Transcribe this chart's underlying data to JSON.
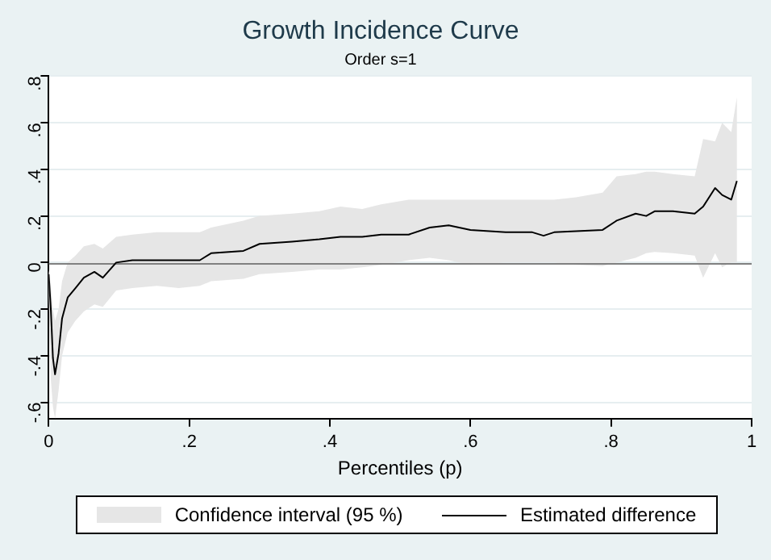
{
  "chart_data": {
    "type": "line",
    "title": "Growth Incidence Curve",
    "subtitle": "Order s=1",
    "xlabel": "Percentiles (p)",
    "x": [
      0,
      0.003,
      0.006,
      0.009,
      0.014,
      0.019,
      0.027,
      0.038,
      0.05,
      0.065,
      0.077,
      0.096,
      0.119,
      0.154,
      0.185,
      0.215,
      0.231,
      0.277,
      0.3,
      0.346,
      0.385,
      0.415,
      0.446,
      0.473,
      0.512,
      0.542,
      0.569,
      0.6,
      0.65,
      0.688,
      0.704,
      0.719,
      0.75,
      0.788,
      0.808,
      0.835,
      0.85,
      0.862,
      0.888,
      0.919,
      0.931,
      0.948,
      0.958,
      0.971,
      0.979
    ],
    "series": [
      {
        "name": "Estimated difference",
        "type": "line",
        "color": "#000000",
        "lower": [
          -0.15,
          -0.5,
          -0.62,
          -0.67,
          -0.55,
          -0.4,
          -0.3,
          -0.25,
          -0.21,
          -0.18,
          -0.19,
          -0.12,
          -0.11,
          -0.1,
          -0.11,
          -0.1,
          -0.08,
          -0.07,
          -0.05,
          -0.04,
          -0.03,
          -0.03,
          -0.02,
          -0.01,
          0.01,
          0.02,
          0.01,
          -0.01,
          0,
          0,
          0,
          0,
          -0.01,
          -0.015,
          0,
          0.02,
          0.04,
          0.045,
          0.04,
          0.03,
          -0.065,
          0.04,
          -0.02,
          0,
          0
        ],
        "upper": [
          -0.03,
          -0.1,
          -0.2,
          -0.25,
          -0.2,
          -0.08,
          0,
          0.03,
          0.07,
          0.08,
          0.06,
          0.11,
          0.12,
          0.13,
          0.13,
          0.13,
          0.15,
          0.18,
          0.2,
          0.21,
          0.22,
          0.24,
          0.23,
          0.25,
          0.27,
          0.27,
          0.27,
          0.27,
          0.27,
          0.27,
          0.27,
          0.27,
          0.28,
          0.3,
          0.37,
          0.38,
          0.39,
          0.39,
          0.38,
          0.37,
          0.53,
          0.52,
          0.6,
          0.56,
          0.71
        ],
        "values": [
          -0.05,
          -0.2,
          -0.41,
          -0.48,
          -0.39,
          -0.24,
          -0.15,
          -0.11,
          -0.065,
          -0.04,
          -0.065,
          0,
          0.01,
          0.01,
          0.01,
          0.01,
          0.04,
          0.05,
          0.08,
          0.09,
          0.1,
          0.11,
          0.11,
          0.12,
          0.12,
          0.15,
          0.16,
          0.14,
          0.13,
          0.13,
          0.115,
          0.13,
          0.135,
          0.14,
          0.18,
          0.21,
          0.2,
          0.22,
          0.22,
          0.21,
          0.24,
          0.32,
          0.29,
          0.27,
          0.35
        ]
      }
    ],
    "annotations": [
      "Confidence interval (95 %)"
    ],
    "xlim": [
      0,
      1
    ],
    "xticks": [
      0,
      {
        "value": 0.2,
        "label": ".2"
      },
      {
        "value": 0.4,
        "label": ".4"
      },
      {
        "value": 0.6,
        "label": ".6"
      },
      {
        "value": 0.8,
        "label": ".8"
      },
      1
    ],
    "ylim": [
      -0.67,
      0.8
    ],
    "yticks": [
      {
        "value": -0.6,
        "label": "-.6"
      },
      {
        "value": -0.4,
        "label": "-.4"
      },
      {
        "value": -0.2,
        "label": "-.2"
      },
      0,
      {
        "value": 0.2,
        "label": ".2"
      },
      {
        "value": 0.4,
        "label": ".4"
      },
      {
        "value": 0.6,
        "label": ".6"
      },
      {
        "value": 0.8,
        "label": ".8"
      }
    ],
    "ref_lines": [
      {
        "axis": "y",
        "value": 0,
        "color": "#808080"
      }
    ],
    "grid": "y",
    "legend": "bottom",
    "marker": "none",
    "line_style": "solid"
  }
}
